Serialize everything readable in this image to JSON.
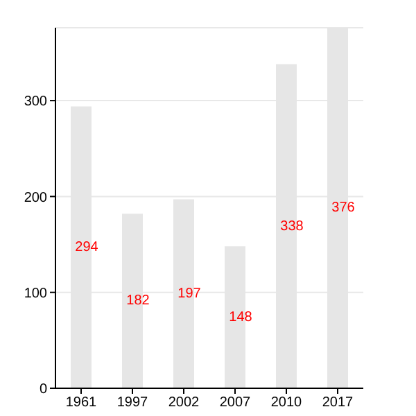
{
  "chart_data": {
    "type": "bar",
    "categories": [
      "1961",
      "1997",
      "2002",
      "2007",
      "2010",
      "2017"
    ],
    "values": [
      294,
      182,
      197,
      148,
      338,
      376
    ],
    "color": "#e6e6e6",
    "ylim": [
      0,
      376
    ],
    "yticks": [
      0,
      100,
      200,
      300
    ],
    "grid": "y",
    "data_labels": true
  }
}
